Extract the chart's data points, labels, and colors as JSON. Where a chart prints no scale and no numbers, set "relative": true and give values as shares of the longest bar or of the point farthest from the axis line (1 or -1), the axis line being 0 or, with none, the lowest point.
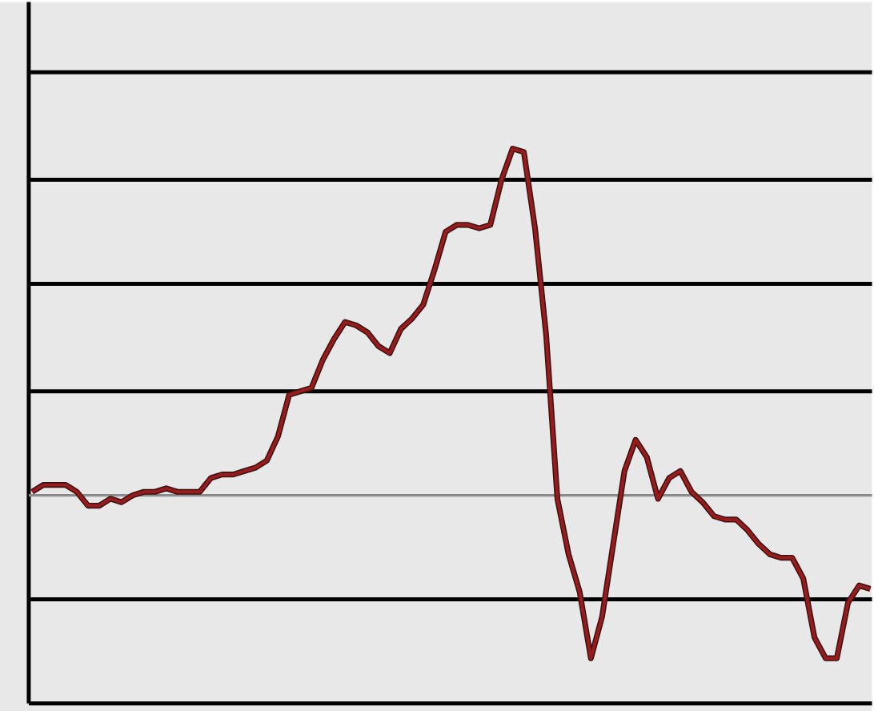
{
  "chart_data": {
    "type": "line",
    "relative": true,
    "color": "#9b1b1b",
    "categories": [
      null,
      null,
      null,
      null,
      null,
      null,
      null,
      null,
      null,
      null,
      null,
      null,
      null,
      null,
      null,
      null,
      null,
      null,
      null,
      null,
      null,
      null,
      null,
      null,
      null,
      null,
      null,
      null,
      null,
      null,
      null,
      null,
      null,
      null,
      null,
      null,
      null,
      null,
      null,
      null,
      null,
      null,
      null,
      null,
      null,
      null,
      null,
      null,
      null,
      null,
      null,
      null,
      null,
      null,
      null,
      null,
      null,
      null,
      null,
      null,
      null,
      null,
      null,
      null,
      null,
      null,
      null,
      null,
      null,
      null,
      null,
      null,
      null,
      null,
      null,
      null
    ],
    "values": [
      0.01,
      0.03,
      0.03,
      0.03,
      0.01,
      -0.03,
      -0.03,
      -0.01,
      -0.02,
      0,
      0.01,
      0.01,
      0.02,
      0.01,
      0.01,
      0.01,
      0.05,
      0.06,
      0.06,
      0.07,
      0.08,
      0.1,
      0.17,
      0.29,
      0.3,
      0.31,
      0.39,
      0.45,
      0.5,
      0.49,
      0.47,
      0.43,
      0.41,
      0.48,
      0.51,
      0.55,
      0.65,
      0.76,
      0.78,
      0.78,
      0.77,
      0.78,
      0.91,
      1,
      0.99,
      0.77,
      0.46,
      -0.01,
      -0.17,
      -0.28,
      -0.47,
      -0.35,
      -0.14,
      0.07,
      0.16,
      0.11,
      -0.01,
      0.05,
      0.07,
      0.01,
      -0.02,
      -0.06,
      -0.07,
      -0.07,
      -0.1,
      -0.14,
      -0.17,
      -0.18,
      -0.18,
      -0.24,
      -0.41,
      -0.47,
      -0.47,
      -0.31,
      -0.26,
      -0.27
    ],
    "ref_lines": [
      {
        "axis": "y",
        "value": 1.22,
        "color": "#000000"
      },
      {
        "axis": "y",
        "value": 0.91,
        "color": "#000000"
      },
      {
        "axis": "y",
        "value": 0.61,
        "color": "#000000"
      },
      {
        "axis": "y",
        "value": 0.3,
        "color": "#000000"
      },
      {
        "axis": "y",
        "value": 0,
        "color": "#8c8c8c"
      },
      {
        "axis": "y",
        "value": -0.3,
        "color": "#000000"
      }
    ]
  }
}
